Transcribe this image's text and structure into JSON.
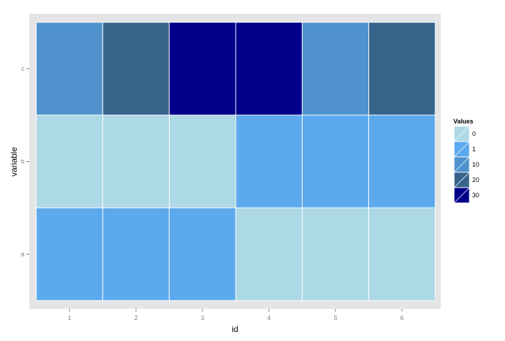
{
  "chart_data": {
    "type": "heatmap",
    "x": [
      1,
      2,
      3,
      4,
      5,
      6
    ],
    "y": [
      "a",
      "b",
      "c"
    ],
    "xlabel": "id",
    "ylabel": "variable",
    "values": {
      "a": [
        1,
        1,
        1,
        0,
        0,
        0
      ],
      "b": [
        0,
        0,
        0,
        1,
        1,
        1
      ],
      "c": [
        10,
        20,
        30,
        30,
        10,
        20
      ]
    },
    "legend": {
      "title": "Values",
      "placement": "right",
      "entries": [
        {
          "label": "0",
          "color": "#add8e6"
        },
        {
          "label": "1",
          "color": "#5ca9ed"
        },
        {
          "label": "10",
          "color": "#4f92cd"
        },
        {
          "label": "20",
          "color": "#36648b"
        },
        {
          "label": "30",
          "color": "#00008b"
        }
      ]
    },
    "panel_background": "#e5e5e5",
    "grid": true
  }
}
